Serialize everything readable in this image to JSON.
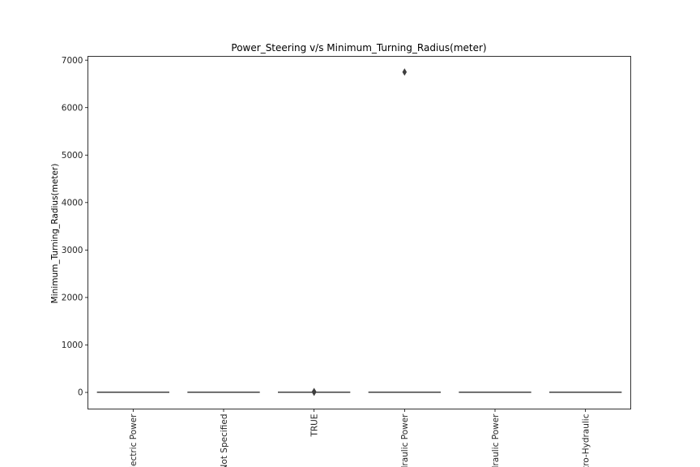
{
  "chart_data": {
    "type": "box",
    "title": "Power_Steering v/s Minimum_Turning_Radius(meter)",
    "xlabel": "",
    "ylabel": "Minimum_Turning_Radius(meter)",
    "categories": [
      "Electric Power",
      "Not Specified",
      "TRUE",
      "Hydraulic Power",
      "Hydraulic Power",
      "Electro-Hydraulic"
    ],
    "category_labels_visible": [
      "lectric Power",
      "Not Specified",
      "TRUE",
      "draulic Power",
      "draulic Power",
      "ctro-Hydraulic"
    ],
    "median": [
      5.2,
      5.1,
      5.0,
      5.3,
      5.2,
      5.4
    ],
    "outliers": [
      [],
      [],
      [
        4.6,
        6.2,
        10.5,
        19.0
      ],
      [
        6750
      ],
      [],
      []
    ],
    "ylim": [
      -350,
      7080
    ],
    "yticks": [
      0,
      1000,
      2000,
      3000,
      4000,
      5000,
      6000,
      7000
    ],
    "ytick_labels": [
      "0",
      "1000",
      "2000",
      "3000",
      "4000",
      "5000",
      "6000",
      "7000"
    ],
    "grid": false,
    "legend": "none"
  },
  "colors": {
    "box_line": "#3f3f3f",
    "axes": "#000000",
    "outlier_fill": "#3f3f3f"
  }
}
